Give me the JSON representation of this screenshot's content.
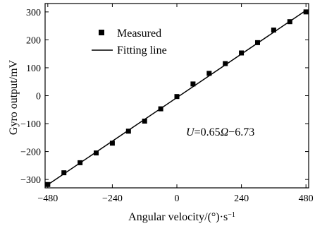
{
  "chart_data": {
    "type": "scatter",
    "xlabel": "Angular velocity/(°)·s",
    "xlabel_sup": "−1",
    "ylabel": "Gyro output/mV",
    "xlim": [
      -490,
      490
    ],
    "ylim": [
      -330,
      330
    ],
    "xticks": [
      -480,
      -240,
      0,
      240,
      480
    ],
    "xtick_labels": [
      "−480",
      "−240",
      "0",
      "240",
      "480"
    ],
    "yticks": [
      -300,
      -200,
      -100,
      0,
      100,
      200,
      300
    ],
    "ytick_labels": [
      "−300",
      "−200",
      "−100",
      "0",
      "100",
      "200",
      "300"
    ],
    "legend_position": "top-left",
    "annotation": {
      "lhs": "U",
      "eq1": "=0.65",
      "omega": "Ω",
      "eq2": "−6.73",
      "x": 240,
      "y": -100
    },
    "series": [
      {
        "name": "Measured",
        "marker": "square",
        "x": [
          -480,
          -420,
          -360,
          -300,
          -240,
          -180,
          -120,
          -60,
          0,
          60,
          120,
          180,
          240,
          300,
          360,
          420,
          480
        ],
        "y": [
          -318,
          -276,
          -240,
          -205,
          -170,
          -127,
          -91,
          -47,
          -3,
          42,
          80,
          115,
          153,
          190,
          235,
          265,
          300
        ]
      },
      {
        "name": "Fitting line",
        "type": "line",
        "slope": 0.65,
        "intercept": -6.73,
        "x_range": [
          -480,
          480
        ]
      }
    ]
  }
}
